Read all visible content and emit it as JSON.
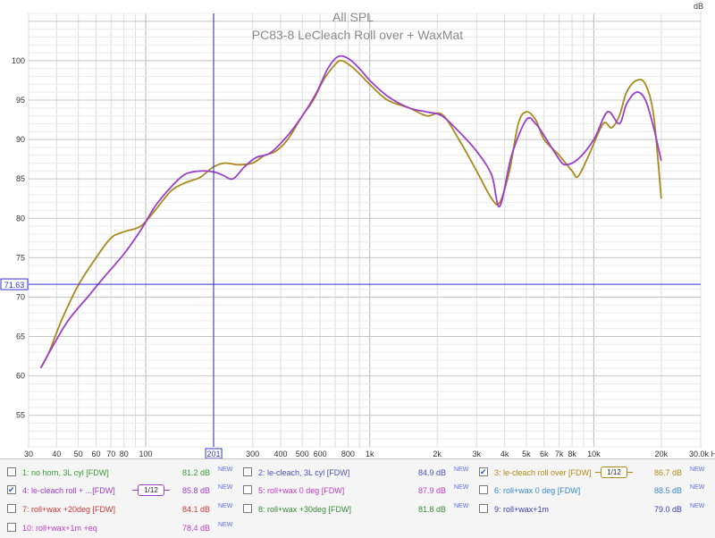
{
  "chart_data": {
    "type": "line",
    "title": "All SPL",
    "subtitle": "PC83-8 LeCleach Roll over + WaxMat",
    "ylabel": "dB",
    "xlabel": "Hz",
    "x_scale": "log",
    "xlim": [
      30,
      30000
    ],
    "ylim": [
      51,
      106
    ],
    "grid": true,
    "x_ticks": [
      {
        "v": 30,
        "label": "30"
      },
      {
        "v": 40,
        "label": "40"
      },
      {
        "v": 50,
        "label": "50"
      },
      {
        "v": 60,
        "label": "60"
      },
      {
        "v": 70,
        "label": "70"
      },
      {
        "v": 80,
        "label": "80"
      },
      {
        "v": 100,
        "label": "100"
      },
      {
        "v": 300,
        "label": "300"
      },
      {
        "v": 400,
        "label": "400"
      },
      {
        "v": 500,
        "label": "500"
      },
      {
        "v": 600,
        "label": "600"
      },
      {
        "v": 800,
        "label": "800"
      },
      {
        "v": 1000,
        "label": "1k"
      },
      {
        "v": 2000,
        "label": "2k"
      },
      {
        "v": 3000,
        "label": "3k"
      },
      {
        "v": 4000,
        "label": "4k"
      },
      {
        "v": 5000,
        "label": "5k"
      },
      {
        "v": 6000,
        "label": "6k"
      },
      {
        "v": 7000,
        "label": "7k"
      },
      {
        "v": 8000,
        "label": "8k"
      },
      {
        "v": 10000,
        "label": "10k"
      },
      {
        "v": 20000,
        "label": "20k"
      },
      {
        "v": 30000,
        "label": "30.0k Hz"
      }
    ],
    "y_ticks": [
      55,
      60,
      65,
      70,
      75,
      80,
      85,
      90,
      95,
      100
    ],
    "cursor": {
      "x": 201,
      "x_label": "201",
      "y": 71.63,
      "y_label": "71.63",
      "color": "#3434c8"
    },
    "series": [
      {
        "name": "le-cleach roll over [FDW]",
        "color": "#a88a1c",
        "points": [
          [
            34,
            61
          ],
          [
            37,
            63
          ],
          [
            42,
            67
          ],
          [
            50,
            71.5
          ],
          [
            60,
            75
          ],
          [
            70,
            77.5
          ],
          [
            80,
            78.3
          ],
          [
            95,
            79
          ],
          [
            110,
            81
          ],
          [
            130,
            83.5
          ],
          [
            150,
            84.5
          ],
          [
            175,
            85.2
          ],
          [
            200,
            86.5
          ],
          [
            225,
            87
          ],
          [
            260,
            86.8
          ],
          [
            300,
            87
          ],
          [
            340,
            88
          ],
          [
            380,
            88.5
          ],
          [
            430,
            90
          ],
          [
            500,
            93
          ],
          [
            560,
            95
          ],
          [
            620,
            97.5
          ],
          [
            700,
            99.5
          ],
          [
            750,
            100
          ],
          [
            850,
            99
          ],
          [
            1000,
            97
          ],
          [
            1200,
            95
          ],
          [
            1500,
            94
          ],
          [
            1800,
            93
          ],
          [
            2100,
            93.2
          ],
          [
            2500,
            90
          ],
          [
            3000,
            86
          ],
          [
            3500,
            82.5
          ],
          [
            3800,
            82
          ],
          [
            4200,
            86
          ],
          [
            4600,
            92
          ],
          [
            5000,
            93.5
          ],
          [
            5500,
            92.5
          ],
          [
            6000,
            90
          ],
          [
            7000,
            88
          ],
          [
            8000,
            86
          ],
          [
            8500,
            85.3
          ],
          [
            9500,
            88
          ],
          [
            11000,
            92
          ],
          [
            12000,
            91.5
          ],
          [
            13000,
            93
          ],
          [
            14000,
            96
          ],
          [
            15500,
            97.5
          ],
          [
            17000,
            97
          ],
          [
            18500,
            93
          ],
          [
            20000,
            82.5
          ]
        ]
      },
      {
        "name": "le-cleach roll + ...[FDW]",
        "color": "#9b3fc8",
        "points": [
          [
            34,
            61
          ],
          [
            38,
            63.5
          ],
          [
            45,
            67
          ],
          [
            55,
            70
          ],
          [
            65,
            72.5
          ],
          [
            80,
            75.5
          ],
          [
            95,
            78.5
          ],
          [
            110,
            81.5
          ],
          [
            130,
            84
          ],
          [
            150,
            85.6
          ],
          [
            175,
            86
          ],
          [
            200,
            85.9
          ],
          [
            220,
            85.5
          ],
          [
            245,
            85
          ],
          [
            275,
            86.5
          ],
          [
            310,
            87.7
          ],
          [
            360,
            88.3
          ],
          [
            430,
            90.5
          ],
          [
            500,
            93
          ],
          [
            580,
            96
          ],
          [
            650,
            99
          ],
          [
            720,
            100.5
          ],
          [
            800,
            100.3
          ],
          [
            900,
            99
          ],
          [
            1000,
            97.5
          ],
          [
            1200,
            95.5
          ],
          [
            1500,
            94
          ],
          [
            1800,
            93.5
          ],
          [
            2100,
            93
          ],
          [
            2500,
            91
          ],
          [
            3000,
            88.5
          ],
          [
            3500,
            85.5
          ],
          [
            3800,
            81.5
          ],
          [
            4300,
            88
          ],
          [
            5000,
            92.5
          ],
          [
            5500,
            92
          ],
          [
            6000,
            90.5
          ],
          [
            7000,
            87.5
          ],
          [
            7500,
            86.8
          ],
          [
            8500,
            87.5
          ],
          [
            10000,
            90
          ],
          [
            11500,
            93.5
          ],
          [
            13000,
            92
          ],
          [
            14000,
            94.5
          ],
          [
            15500,
            96
          ],
          [
            17000,
            95
          ],
          [
            18500,
            91.5
          ],
          [
            20000,
            87.3
          ]
        ]
      }
    ]
  },
  "legend": [
    {
      "idx": "1:",
      "name": "no horn, 3L cyl [FDW]",
      "value": "81.2 dB",
      "badge": "NEW",
      "color": "#3a9a3a",
      "checked": false
    },
    {
      "idx": "2:",
      "name": "le-cleach, 3L cyl [FDW]",
      "value": "84.9 dB",
      "badge": "NEW",
      "color": "#5050c0",
      "checked": false
    },
    {
      "idx": "3:",
      "name": "le-cleach roll over [FDW]",
      "value": "86.7 dB",
      "badge": "NEW",
      "color": "#b08a18",
      "checked": true,
      "smoothing": "1/12"
    },
    {
      "idx": "4:",
      "name": "le-cleach roll + ...[FDW]",
      "value": "85.8 dB",
      "badge": "NEW",
      "color": "#9b3fc8",
      "checked": true,
      "smoothing": "1/12"
    },
    {
      "idx": "5:",
      "name": "roll+wax 0 deg [FDW]",
      "value": "87.9 dB",
      "badge": "NEW",
      "color": "#c03ac0",
      "checked": false
    },
    {
      "idx": "6:",
      "name": "roll+wax 0 deg [FDW]",
      "value": "88.5 dB",
      "badge": "NEW",
      "color": "#3a8ac8",
      "checked": false
    },
    {
      "idx": "7:",
      "name": "roll+wax +20deg [FDW]",
      "value": "84.1 dB",
      "badge": "NEW",
      "color": "#c83a3a",
      "checked": false
    },
    {
      "idx": "8:",
      "name": "roll+wax +30deg [FDW]",
      "value": "81.8 dB",
      "badge": "NEW",
      "color": "#3a8a3a",
      "checked": false
    },
    {
      "idx": "9:",
      "name": "roll+wax+1m",
      "value": "79.0 dB",
      "badge": "NEW",
      "color": "#4040b0",
      "checked": false
    },
    {
      "idx": "10:",
      "name": "roll+wax+1m +eq",
      "value": "78.4 dB",
      "badge": "NEW",
      "color": "#c040c0",
      "checked": false
    }
  ]
}
